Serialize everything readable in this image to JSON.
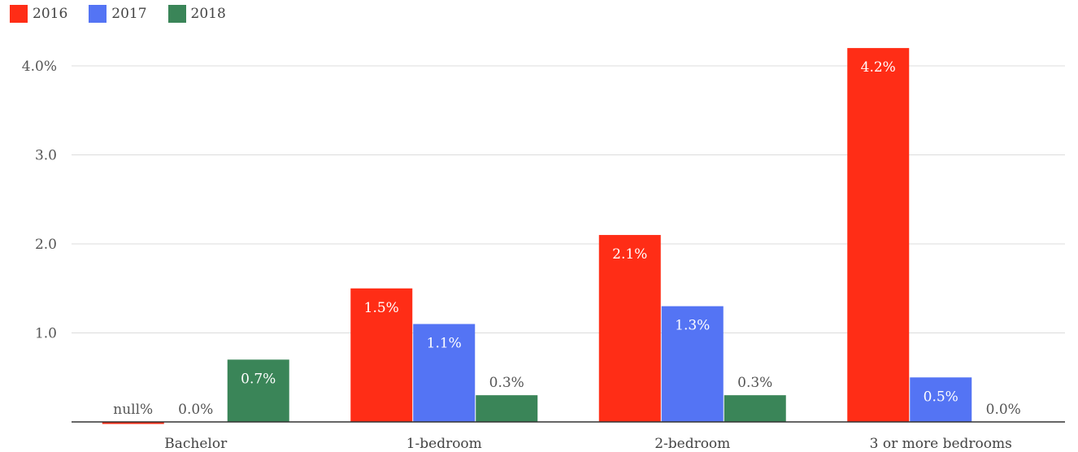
{
  "chart_data": {
    "type": "bar",
    "categories": [
      "Bachelor",
      "1-bedroom",
      "2-bedroom",
      "3 or more bedrooms"
    ],
    "series": [
      {
        "name": "2016",
        "color": "#ff2d16",
        "values": [
          null,
          1.5,
          2.1,
          4.2
        ],
        "labels": [
          "null%",
          "1.5%",
          "2.1%",
          "4.2%"
        ]
      },
      {
        "name": "2017",
        "color": "#5474f4",
        "values": [
          0.0,
          1.1,
          1.3,
          0.5
        ],
        "labels": [
          "0.0%",
          "1.1%",
          "1.3%",
          "0.5%"
        ]
      },
      {
        "name": "2018",
        "color": "#3a8558",
        "values": [
          0.7,
          0.3,
          0.3,
          0.0
        ],
        "labels": [
          "0.7%",
          "0.3%",
          "0.3%",
          "0.0%"
        ]
      }
    ],
    "yticks": [
      {
        "value": 1.0,
        "label": "1.0"
      },
      {
        "value": 2.0,
        "label": "2.0"
      },
      {
        "value": 3.0,
        "label": "3.0"
      },
      {
        "value": 4.0,
        "label": "4.0%"
      }
    ],
    "ylim": [
      0,
      4.3
    ],
    "legend_position": "top-left",
    "grid": true
  }
}
